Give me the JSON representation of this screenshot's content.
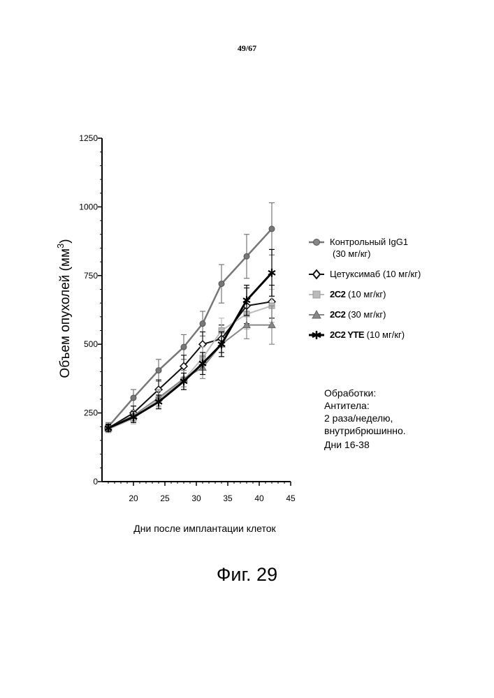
{
  "page": {
    "number": "49/67",
    "caption": "Фиг. 29"
  },
  "legend": [
    {
      "label": "Контрольный IgG1",
      "sub": "(30 мг/кг)",
      "color": "#777777",
      "marker": "circle-diamond"
    },
    {
      "label": "Цетуксимаб",
      "sub": "(10 мг/кг)",
      "color": "#111111",
      "marker": "diamond-open"
    },
    {
      "label": "2C2",
      "sub": "(10 мг/кг)",
      "color": "#bbbbbb",
      "marker": "square"
    },
    {
      "label": "2C2",
      "sub": "(30 мг/кг)",
      "color": "#888888",
      "marker": "triangle"
    },
    {
      "label": "2C2 YTE",
      "sub": "(10 мг/кг)",
      "color": "#000000",
      "marker": "star"
    }
  ],
  "treatment": {
    "title": "Обработки:",
    "line1": "Антитела:",
    "line2": "2 раза/неделю,",
    "line3": "внутрибрюшинно.",
    "days": "Дни 16-38"
  },
  "chart_data": {
    "type": "line",
    "xlabel": "Дни после имплантации клеток",
    "ylabel": "Объем опухолей (мм",
    "ylabel_sup": "3",
    "ylabel_end": ")",
    "xlim": [
      15,
      45
    ],
    "ylim": [
      0,
      1250
    ],
    "xticks": [
      20,
      25,
      30,
      35,
      40,
      45
    ],
    "yticks": [
      0,
      250,
      500,
      750,
      1000,
      1250
    ],
    "x": [
      16,
      20,
      24,
      28,
      31,
      34,
      38,
      42
    ],
    "series": [
      {
        "name": "Контрольный IgG1 (30 мг/кг)",
        "color": "#777777",
        "width": 2.5,
        "marker": "circle",
        "values": [
          200,
          305,
          405,
          490,
          575,
          720,
          820,
          920
        ],
        "err": [
          15,
          30,
          40,
          45,
          45,
          70,
          80,
          95
        ]
      },
      {
        "name": "Цетуксимаб (10 мг/кг)",
        "color": "#111111",
        "width": 2,
        "marker": "diamond",
        "values": [
          195,
          250,
          335,
          420,
          500,
          520,
          640,
          655
        ],
        "err": [
          15,
          25,
          35,
          40,
          45,
          50,
          65,
          60
        ]
      },
      {
        "name": "2C2 (10 мг/кг)",
        "color": "#bbbbbb",
        "width": 2,
        "marker": "square",
        "values": [
          190,
          230,
          300,
          370,
          450,
          550,
          610,
          640
        ],
        "err": [
          12,
          20,
          30,
          35,
          40,
          45,
          55,
          60
        ]
      },
      {
        "name": "2C2 (30 мг/кг)",
        "color": "#888888",
        "width": 2,
        "marker": "triangle",
        "values": [
          195,
          240,
          305,
          375,
          415,
          500,
          570,
          570
        ],
        "err": [
          12,
          20,
          30,
          30,
          40,
          45,
          50,
          70
        ]
      },
      {
        "name": "2C2 YTE (10 мг/кг)",
        "color": "#000000",
        "width": 3,
        "marker": "star",
        "values": [
          195,
          235,
          290,
          365,
          430,
          500,
          660,
          760
        ],
        "err": [
          12,
          20,
          25,
          30,
          40,
          45,
          55,
          85
        ]
      }
    ]
  }
}
